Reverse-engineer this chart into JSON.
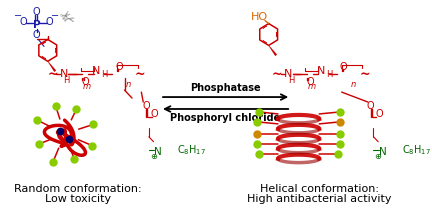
{
  "background_color": "#ffffff",
  "arrow_forward_label": "Phosphatase",
  "arrow_reverse_label": "Phosphoryl chloride",
  "left_caption_line1": "Random conformation:",
  "left_caption_line2": "Low toxicity",
  "right_caption_line1": "Helical conformation:",
  "right_caption_line2": "High antibacterial activity",
  "red": "#cc0000",
  "dark_red": "#990000",
  "green_yellow": "#88cc00",
  "blue": "#1a1aaa",
  "orange": "#dd6600",
  "dark_green": "#006600",
  "olive": "#cc8800",
  "navy": "#000066",
  "gray": "#888888",
  "fig_width": 4.32,
  "fig_height": 2.12,
  "dpi": 100
}
